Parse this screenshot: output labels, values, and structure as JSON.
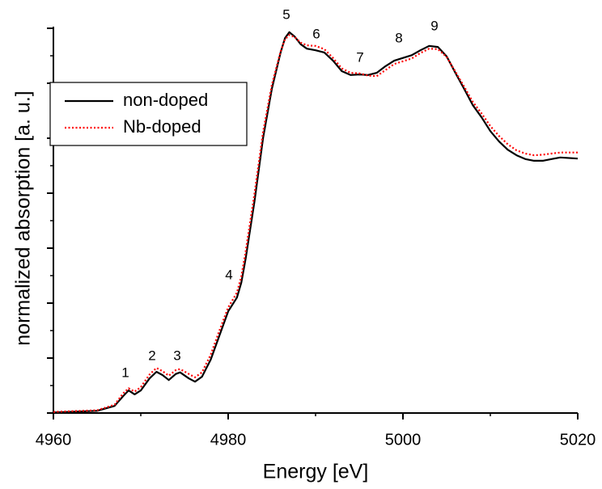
{
  "chart_data": {
    "type": "line",
    "x_label": "Energy [eV]",
    "y_label": "normalized absorption [a. u.]",
    "x": [
      4960,
      4965,
      4967,
      4968,
      4968.6,
      4969.3,
      4970,
      4971,
      4971.8,
      4972.5,
      4973.2,
      4974,
      4974.5,
      4975.5,
      4976.2,
      4977,
      4978,
      4979,
      4980,
      4981,
      4981.5,
      4982,
      4983,
      4984,
      4985,
      4986,
      4986.5,
      4987,
      4987.6,
      4988.3,
      4989,
      4990,
      4991,
      4992,
      4993,
      4994,
      4995,
      4996,
      4997,
      4998,
      4999,
      5000,
      5001,
      5002,
      5003,
      5004,
      5005,
      5006,
      5007,
      5008,
      5009,
      5010,
      5011,
      5012,
      5013,
      5014,
      5015,
      5016,
      5017,
      5018,
      5020
    ],
    "series": [
      {
        "name": "non-doped",
        "color": "#000000",
        "dash": "solid",
        "values": [
          0.01,
          0.04,
          0.13,
          0.31,
          0.41,
          0.34,
          0.41,
          0.63,
          0.75,
          0.69,
          0.6,
          0.71,
          0.74,
          0.63,
          0.57,
          0.66,
          0.97,
          1.41,
          1.85,
          2.1,
          2.37,
          2.81,
          3.84,
          5.01,
          5.9,
          6.56,
          6.82,
          6.93,
          6.85,
          6.71,
          6.63,
          6.6,
          6.56,
          6.41,
          6.22,
          6.15,
          6.16,
          6.15,
          6.19,
          6.31,
          6.41,
          6.46,
          6.51,
          6.6,
          6.68,
          6.66,
          6.49,
          6.19,
          5.9,
          5.6,
          5.38,
          5.13,
          4.94,
          4.79,
          4.69,
          4.62,
          4.59,
          4.59,
          4.62,
          4.65,
          4.63
        ]
      },
      {
        "name": "Nb-doped",
        "color": "#ff0000",
        "dash": "dotted",
        "values": [
          0.02,
          0.05,
          0.15,
          0.36,
          0.45,
          0.39,
          0.47,
          0.7,
          0.82,
          0.76,
          0.68,
          0.78,
          0.8,
          0.71,
          0.65,
          0.74,
          1.06,
          1.5,
          1.92,
          2.19,
          2.48,
          2.94,
          3.98,
          5.12,
          5.97,
          6.58,
          6.8,
          6.88,
          6.84,
          6.74,
          6.69,
          6.68,
          6.62,
          6.46,
          6.27,
          6.19,
          6.18,
          6.14,
          6.13,
          6.24,
          6.35,
          6.4,
          6.45,
          6.55,
          6.63,
          6.62,
          6.48,
          6.21,
          5.94,
          5.66,
          5.45,
          5.22,
          5.04,
          4.89,
          4.78,
          4.72,
          4.69,
          4.7,
          4.72,
          4.74,
          4.74
        ]
      }
    ],
    "annotations": [
      "1",
      "2",
      "3",
      "4",
      "5",
      "6",
      "7",
      "8",
      "9"
    ],
    "xlim": [
      4960,
      5020
    ],
    "xticks": [
      4960,
      4980,
      5000,
      5020
    ],
    "ylim": [
      0,
      7
    ],
    "yticks": [
      0,
      1,
      2,
      3,
      4,
      5,
      6,
      7
    ],
    "legend": "upper-left",
    "grid": false
  }
}
